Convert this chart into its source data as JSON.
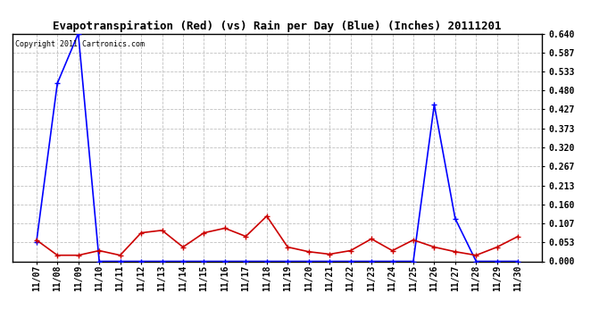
{
  "title": "Evapotranspiration (Red) (vs) Rain per Day (Blue) (Inches) 20111201",
  "copyright": "Copyright 2011 Cartronics.com",
  "x_labels": [
    "11/07",
    "11/08",
    "11/09",
    "11/10",
    "11/11",
    "11/12",
    "11/13",
    "11/14",
    "11/15",
    "11/16",
    "11/17",
    "11/18",
    "11/19",
    "11/20",
    "11/21",
    "11/22",
    "11/23",
    "11/24",
    "11/25",
    "11/26",
    "11/27",
    "11/28",
    "11/29",
    "11/30"
  ],
  "blue_data": [
    0.053,
    0.5,
    0.64,
    0.0,
    0.0,
    0.0,
    0.0,
    0.0,
    0.0,
    0.0,
    0.0,
    0.0,
    0.0,
    0.0,
    0.0,
    0.0,
    0.0,
    0.0,
    0.0,
    0.44,
    0.12,
    0.0,
    0.0,
    0.0
  ],
  "red_data": [
    0.06,
    0.017,
    0.017,
    0.03,
    0.017,
    0.08,
    0.087,
    0.04,
    0.08,
    0.093,
    0.07,
    0.127,
    0.04,
    0.027,
    0.02,
    0.03,
    0.063,
    0.03,
    0.06,
    0.04,
    0.027,
    0.017,
    0.04,
    0.07
  ],
  "ylim": [
    0.0,
    0.64
  ],
  "yticks": [
    0.0,
    0.053,
    0.107,
    0.16,
    0.213,
    0.267,
    0.32,
    0.373,
    0.427,
    0.48,
    0.533,
    0.587,
    0.64
  ],
  "background_color": "#ffffff",
  "blue_color": "#0000ff",
  "red_color": "#cc0000",
  "grid_color": "#c0c0c0",
  "title_fontsize": 9,
  "copyright_fontsize": 6,
  "tick_fontsize": 7,
  "ytick_fontsize": 7
}
